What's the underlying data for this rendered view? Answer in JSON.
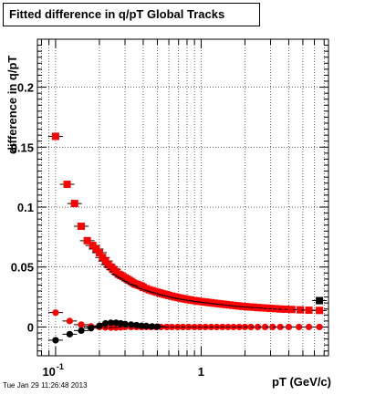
{
  "title": "Fitted difference in q/pT  Global Tracks",
  "timestamp": "Tue Jan 29 11:26:48 2013",
  "chart_data": {
    "type": "scatter",
    "title": "Fitted difference in q/pT  Global Tracks",
    "xlabel": "pT (GeV/c)",
    "ylabel": "difference in q/pT",
    "x_scale": "log",
    "xlim": [
      0.075,
      7.5
    ],
    "ylim": [
      -0.024,
      0.24
    ],
    "grid": true,
    "x_ticks": [
      {
        "value": 0.1,
        "label": "10",
        "sup": "-1"
      },
      {
        "value": 1,
        "label": "1",
        "sup": ""
      }
    ],
    "y_ticks": [
      {
        "value": 0,
        "label": "0"
      },
      {
        "value": 0.05,
        "label": "0.05"
      },
      {
        "value": 0.1,
        "label": "0.1"
      },
      {
        "value": 0.15,
        "label": "0.15"
      },
      {
        "value": 0.2,
        "label": "0.2"
      }
    ],
    "series": [
      {
        "color": "#ff0000",
        "marker": "square",
        "x": [
          0.1,
          0.12,
          0.135,
          0.15,
          0.165,
          0.18,
          0.19,
          0.2,
          0.21,
          0.22,
          0.23,
          0.24,
          0.25,
          0.26,
          0.27,
          0.28,
          0.29,
          0.3,
          0.31,
          0.32,
          0.33,
          0.34,
          0.35,
          0.36,
          0.37,
          0.38,
          0.39,
          0.4,
          0.42,
          0.44,
          0.46,
          0.48,
          0.5,
          0.52,
          0.54,
          0.56,
          0.58,
          0.6,
          0.63,
          0.66,
          0.69,
          0.72,
          0.75,
          0.78,
          0.81,
          0.85,
          0.89,
          0.93,
          0.97,
          1.02,
          1.07,
          1.12,
          1.17,
          1.23,
          1.29,
          1.35,
          1.42,
          1.49,
          1.57,
          1.65,
          1.74,
          1.83,
          1.93,
          2.04,
          2.16,
          2.3,
          2.45,
          2.62,
          2.8,
          3.0,
          3.25,
          3.5,
          3.8,
          4.2,
          4.8,
          5.5,
          6.5
        ],
        "y": [
          0.159,
          0.119,
          0.103,
          0.084,
          0.072,
          0.068,
          0.065,
          0.062,
          0.058,
          0.055,
          0.052,
          0.05,
          0.048,
          0.046,
          0.044,
          0.043,
          0.042,
          0.041,
          0.04,
          0.039,
          0.038,
          0.037,
          0.036,
          0.0355,
          0.035,
          0.0345,
          0.034,
          0.033,
          0.032,
          0.031,
          0.0303,
          0.0296,
          0.029,
          0.0284,
          0.0278,
          0.0273,
          0.0268,
          0.0263,
          0.0257,
          0.0251,
          0.0246,
          0.0241,
          0.0237,
          0.0233,
          0.0229,
          0.0225,
          0.0221,
          0.0218,
          0.0214,
          0.0211,
          0.0208,
          0.0205,
          0.0202,
          0.0199,
          0.0196,
          0.0193,
          0.019,
          0.0187,
          0.0184,
          0.0181,
          0.0178,
          0.0175,
          0.0172,
          0.017,
          0.0167,
          0.0165,
          0.0162,
          0.016,
          0.0158,
          0.0155,
          0.0153,
          0.015,
          0.0148,
          0.0146,
          0.0143,
          0.014,
          0.0138
        ]
      },
      {
        "color": "#ff0000",
        "marker": "circle",
        "x": [
          0.1,
          0.125,
          0.15,
          0.175,
          0.2,
          0.22,
          0.24,
          0.26,
          0.28,
          0.3,
          0.33,
          0.36,
          0.39,
          0.42,
          0.45,
          0.49,
          0.53,
          0.58,
          0.63,
          0.69,
          0.75,
          0.82,
          0.9,
          0.98,
          1.07,
          1.17,
          1.28,
          1.4,
          1.53,
          1.67,
          1.83,
          2.0,
          2.2,
          2.45,
          2.75,
          3.1,
          3.5,
          4.0,
          4.7,
          5.5,
          6.5
        ],
        "y": [
          0.012,
          0.005,
          0.002,
          0.0005,
          0.0,
          -0.0003,
          -0.0005,
          -0.0005,
          -0.0003,
          0.0,
          0.0,
          0.0,
          0.0,
          0.0,
          0.0,
          0.0,
          0.0,
          0.0,
          0.0,
          0.0,
          0.0,
          0.0,
          0.0,
          0.0,
          0.0,
          0.0,
          0.0,
          0.0,
          0.0,
          0.0,
          0.0,
          0.0,
          0.0,
          0.0,
          0.0,
          0.0,
          0.0,
          0.0,
          0.0,
          0.0,
          0.0
        ]
      },
      {
        "color": "#000000",
        "marker": "circle",
        "x": [
          0.1,
          0.125,
          0.15,
          0.175,
          0.2,
          0.22,
          0.24,
          0.26,
          0.28,
          0.3,
          0.33,
          0.36,
          0.39,
          0.42,
          0.46,
          0.5
        ],
        "y": [
          -0.011,
          -0.006,
          -0.003,
          -0.001,
          0.001,
          0.003,
          0.0035,
          0.0035,
          0.003,
          0.0025,
          0.002,
          0.0015,
          0.001,
          0.0008,
          0.0005,
          0.0003
        ]
      },
      {
        "color": "#000000",
        "marker": "square",
        "x": [
          6.5
        ],
        "y": [
          0.022
        ]
      }
    ]
  }
}
